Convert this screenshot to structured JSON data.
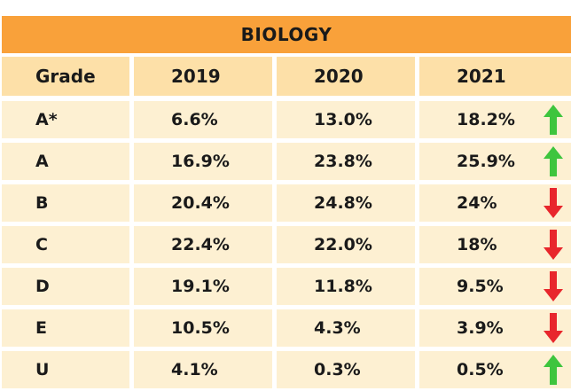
{
  "chart_data": {
    "type": "table",
    "title": "BIOLOGY",
    "columns": [
      "Grade",
      "2019",
      "2020",
      "2021"
    ],
    "rows": [
      {
        "grade": "A*",
        "values": [
          "6.6%",
          "13.0%",
          "18.2%"
        ],
        "trend": "up"
      },
      {
        "grade": "A",
        "values": [
          "16.9%",
          "23.8%",
          "25.9%"
        ],
        "trend": "up"
      },
      {
        "grade": "B",
        "values": [
          "20.4%",
          "24.8%",
          "24%"
        ],
        "trend": "down"
      },
      {
        "grade": "C",
        "values": [
          "22.4%",
          "22.0%",
          "18%"
        ],
        "trend": "down"
      },
      {
        "grade": "D",
        "values": [
          "19.1%",
          "11.8%",
          "9.5%"
        ],
        "trend": "down"
      },
      {
        "grade": "E",
        "values": [
          "10.5%",
          "4.3%",
          "3.9%"
        ],
        "trend": "down"
      },
      {
        "grade": "U",
        "values": [
          "4.1%",
          "0.3%",
          "0.5%"
        ],
        "trend": "up"
      }
    ]
  },
  "colors": {
    "title_bg": "#f9a13a",
    "header_bg": "#fde0a8",
    "row_bg": "#fdf0d2",
    "up_arrow": "#3ec53e",
    "down_arrow": "#e8262c"
  }
}
